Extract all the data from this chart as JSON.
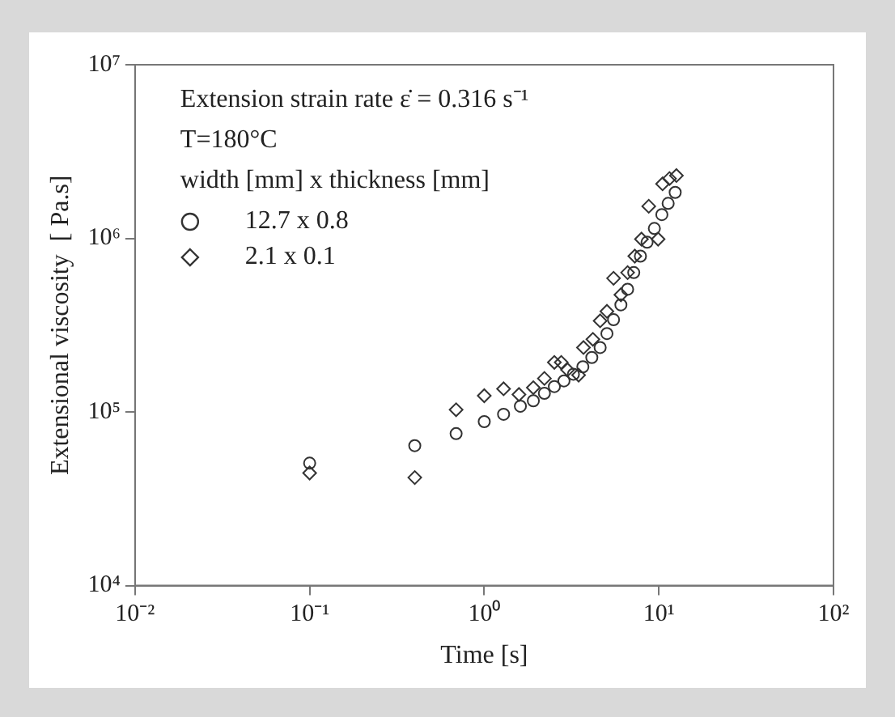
{
  "chart_data": {
    "type": "scatter",
    "xlabel": "Time [s]",
    "ylabel": "Extensional viscosity  [ Pa.s]",
    "log": "xy",
    "grid": false,
    "legend": "top left",
    "legend_title": "width [mm] x thickness [mm]",
    "annotations": [
      "Extension strain rate ε̇ = 0.316 s⁻¹",
      "T=180°C"
    ],
    "xlim": [
      0.01,
      100
    ],
    "ylim": [
      10000,
      10000000
    ],
    "xticks": [
      {
        "value": 0.01,
        "label": "10⁻²"
      },
      {
        "value": 0.1,
        "label": "10⁻¹"
      },
      {
        "value": 1,
        "label": "10⁰"
      },
      {
        "value": 10,
        "label": "10¹"
      },
      {
        "value": 100,
        "label": "10²"
      }
    ],
    "yticks": [
      {
        "value": 10000,
        "label": "10⁴"
      },
      {
        "value": 100000,
        "label": "10⁵"
      },
      {
        "value": 1000000,
        "label": "10⁶"
      },
      {
        "value": 10000000,
        "label": "10⁷"
      }
    ],
    "series": [
      {
        "name": "12.7 x 0.8",
        "color": "#333333",
        "marker": "circle",
        "x": [
          0.1,
          0.4,
          0.69,
          1.0,
          1.29,
          1.61,
          1.91,
          2.21,
          2.52,
          2.86,
          3.24,
          3.67,
          4.13,
          4.61,
          5.04,
          5.5,
          6.06,
          6.62,
          7.18,
          7.84,
          8.56,
          9.42,
          10.4,
          11.3,
          12.4
        ],
        "values": [
          50700,
          64000,
          75000,
          88000,
          97000,
          108000,
          116000,
          128000,
          140000,
          151000,
          165000,
          182000,
          206000,
          235000,
          283000,
          340000,
          414000,
          509000,
          635000,
          790000,
          950000,
          1140000,
          1370000,
          1590000,
          1840000
        ]
      },
      {
        "name": "2.1 x 0.1",
        "color": "#333333",
        "marker": "diamond",
        "x": [
          0.1,
          0.4,
          0.69,
          1.0,
          1.29,
          1.58,
          1.91,
          2.21,
          2.52,
          2.76,
          3.0,
          3.47,
          3.7,
          4.19,
          4.61,
          5.04,
          5.5,
          6.06,
          6.62,
          7.28,
          7.95,
          8.75,
          9.9,
          10.5,
          11.5,
          12.6
        ],
        "values": [
          44500,
          41900,
          103000,
          124000,
          136000,
          126000,
          138000,
          156000,
          193000,
          193000,
          175000,
          163000,
          235000,
          262000,
          335000,
          380000,
          589000,
          473000,
          635000,
          790000,
          990000,
          1530000,
          990000,
          2060000,
          2210000,
          2300000
        ]
      }
    ]
  }
}
